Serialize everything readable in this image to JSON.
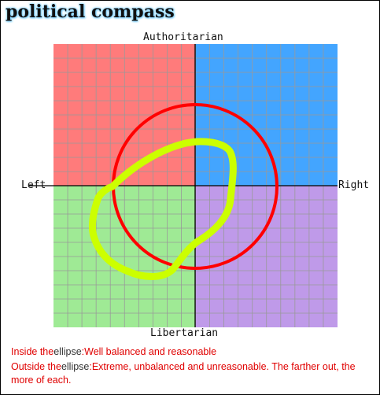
{
  "title": "political compass",
  "axes": {
    "top": "Authoritarian",
    "bottom": "Libertarian",
    "left": "Left",
    "right": "Right"
  },
  "quadrant_colors": {
    "authoritarian_left": "#ff7b7b",
    "authoritarian_right": "#43a5ff",
    "libertarian_left": "#9fea95",
    "libertarian_right": "#bf9ae9",
    "grid": "#999999",
    "axis": "#000000"
  },
  "overlays": {
    "balanced_circle_color": "#ff0000",
    "scribble_color": "#ccff00"
  },
  "notes": [
    {
      "prefix": "Inside the",
      "word": "ellipse",
      "suffix": ":Well balanced and reasonable"
    },
    {
      "prefix": "Outside the",
      "word": "ellipse",
      "suffix": ":Extreme, unbalanced and unreasonable. The farther out, the more of each."
    }
  ]
}
